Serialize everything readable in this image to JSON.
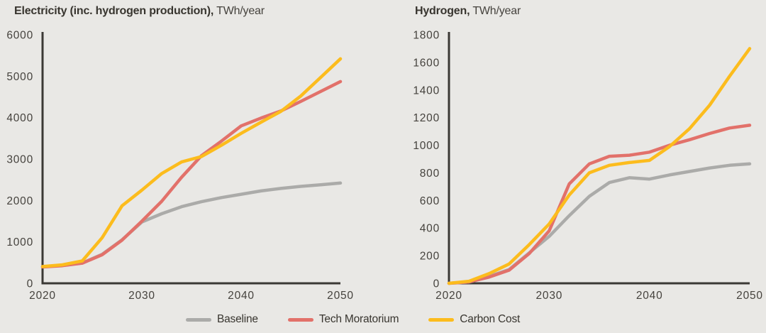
{
  "colors": {
    "background": "#E9E8E5",
    "axis": "#3B3935",
    "title_text": "#38352F",
    "tick_text": "#45423D",
    "baseline": "#ABABA9",
    "tech_moratorium": "#E2716A",
    "carbon_cost": "#FCBC1D"
  },
  "charts": [
    {
      "title_bold": "Electricity (inc. hydrogen production),",
      "title_unit": "TWh/year"
    },
    {
      "title_bold": "Hydrogen,",
      "title_unit": "TWh/year"
    }
  ],
  "legend": {
    "items": [
      {
        "label": "Baseline",
        "color_key": "baseline"
      },
      {
        "label": "Tech Moratorium",
        "color_key": "tech_moratorium"
      },
      {
        "label": "Carbon Cost",
        "color_key": "carbon_cost"
      }
    ]
  },
  "chart_data": [
    {
      "type": "line",
      "title": "Electricity (inc. hydrogen production)",
      "ylabel": "TWh/year",
      "xlim": [
        2020,
        2050
      ],
      "ylim": [
        0,
        6000
      ],
      "xticks": [
        2020,
        2030,
        2040,
        2050
      ],
      "yticks": [
        0,
        1000,
        2000,
        3000,
        4000,
        5000,
        6000
      ],
      "grid": false,
      "legend_position": "bottom",
      "x": [
        2020,
        2022,
        2024,
        2026,
        2028,
        2030,
        2032,
        2034,
        2036,
        2038,
        2040,
        2042,
        2044,
        2046,
        2048,
        2050
      ],
      "series": [
        {
          "name": "Baseline",
          "color_key": "baseline",
          "values": [
            400,
            430,
            490,
            700,
            1050,
            1480,
            1680,
            1850,
            1970,
            2070,
            2150,
            2230,
            2290,
            2340,
            2380,
            2420
          ]
        },
        {
          "name": "Tech Moratorium",
          "color_key": "tech_moratorium",
          "values": [
            395,
            425,
            485,
            690,
            1040,
            1500,
            1980,
            2560,
            3080,
            3430,
            3800,
            3990,
            4160,
            4390,
            4630,
            4870
          ]
        },
        {
          "name": "Carbon Cost",
          "color_key": "carbon_cost",
          "values": [
            405,
            445,
            540,
            1100,
            1870,
            2250,
            2650,
            2930,
            3060,
            3330,
            3620,
            3890,
            4150,
            4520,
            4970,
            5420
          ]
        }
      ]
    },
    {
      "type": "line",
      "title": "Hydrogen",
      "ylabel": "TWh/year",
      "xlim": [
        2020,
        2050
      ],
      "ylim": [
        0,
        1800
      ],
      "xticks": [
        2020,
        2030,
        2040,
        2050
      ],
      "yticks": [
        0,
        200,
        400,
        600,
        800,
        1000,
        1200,
        1400,
        1600,
        1800
      ],
      "grid": false,
      "legend_position": "bottom",
      "x": [
        2020,
        2022,
        2024,
        2026,
        2028,
        2030,
        2032,
        2034,
        2036,
        2038,
        2040,
        2042,
        2044,
        2046,
        2048,
        2050
      ],
      "series": [
        {
          "name": "Baseline",
          "color_key": "baseline",
          "values": [
            0,
            10,
            50,
            100,
            220,
            340,
            490,
            630,
            730,
            765,
            755,
            785,
            810,
            835,
            855,
            865
          ]
        },
        {
          "name": "Tech Moratorium",
          "color_key": "tech_moratorium",
          "values": [
            0,
            10,
            45,
            95,
            215,
            380,
            720,
            865,
            920,
            928,
            950,
            1000,
            1040,
            1085,
            1125,
            1145
          ]
        },
        {
          "name": "Carbon Cost",
          "color_key": "carbon_cost",
          "values": [
            0,
            15,
            70,
            140,
            280,
            430,
            640,
            800,
            855,
            875,
            890,
            990,
            1120,
            1290,
            1500,
            1700
          ]
        }
      ]
    }
  ]
}
